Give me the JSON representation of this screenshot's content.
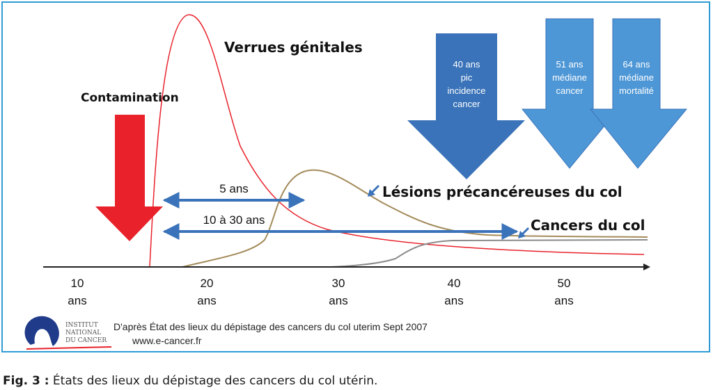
{
  "labels": {
    "verrues": "Verrues génitales",
    "contamination": "Contamination",
    "lesions": "Lésions précancéreuses du col",
    "cancers": "Cancers du col",
    "span_5": "5 ans",
    "span_10_30": "10 à 30 ans"
  },
  "arrows": [
    {
      "line1": "40 ans",
      "line2": "pic",
      "line3": "incidence",
      "line4": "cancer",
      "color": "#3a73b9"
    },
    {
      "line1": "51 ans",
      "line2": "médiane",
      "line3": "cancer",
      "line4": "",
      "color": "#4e97d6"
    },
    {
      "line1": "64 ans",
      "line2": "médiane",
      "line3": "mortalité",
      "line4": "",
      "color": "#4e97d6"
    }
  ],
  "axis": {
    "ticks": [
      {
        "value": "10",
        "unit": "ans"
      },
      {
        "value": "20",
        "unit": "ans"
      },
      {
        "value": "30",
        "unit": "ans"
      },
      {
        "value": "40",
        "unit": "ans"
      },
      {
        "value": "50",
        "unit": "ans"
      }
    ]
  },
  "logo": {
    "line1": "INSTITUT",
    "line2": "NATIONAL",
    "line3": "DU CANCER"
  },
  "source": {
    "line1": "D'après État des lieux du dépistage des cancers du col uterim Sept 2007",
    "line2": "www.e-cancer.fr"
  },
  "caption": {
    "prefix": "Fig. 3 :",
    "text": " États des lieux du dépistage des cancers du col utérin."
  },
  "colors": {
    "red": "#e8212a",
    "blue": "#3a73b9",
    "light_blue": "#4e97d6",
    "olive": "#a38b5a",
    "gray": "#8a8a8a",
    "frame": "#2f9bd5"
  }
}
